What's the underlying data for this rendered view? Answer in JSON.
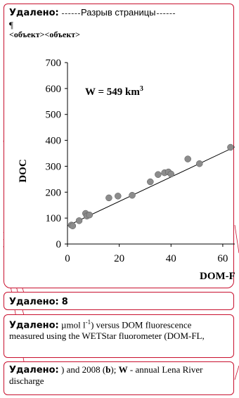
{
  "comments": {
    "main": {
      "label": "Удалено:",
      "break_text": "Разрыв страницы",
      "paragraph_mark": "¶",
      "objects": "<объект><объект>"
    },
    "second": {
      "label": "Удалено:",
      "text": "8"
    },
    "third": {
      "label": "Удалено:",
      "text_before": " µmol l",
      "sup": "-1",
      "text_after": ") versus DOM fluorescence measured using the WETStar fluorometer (DOM-FL,"
    },
    "fourth": {
      "label": "Удалено:",
      "text_before": " ) and 2008 (",
      "bold_b": "b",
      "text_mid": "); ",
      "bold_w": "W",
      "text_after": " - annual Lena River discharge"
    }
  },
  "chart_data": {
    "type": "scatter",
    "ylabel": "DOC",
    "xlabel": "DOM-F",
    "annotation_text": "W = 549 km",
    "annotation_sup": "3",
    "xlim": [
      0,
      66
    ],
    "ylim": [
      0,
      700
    ],
    "xticks": [
      0,
      20,
      40,
      60
    ],
    "yticks": [
      0,
      100,
      200,
      300,
      400,
      500,
      600,
      700
    ],
    "points": [
      {
        "x": 1.5,
        "y": 73
      },
      {
        "x": 2,
        "y": 70
      },
      {
        "x": 4.5,
        "y": 90
      },
      {
        "x": 7,
        "y": 118
      },
      {
        "x": 7.5,
        "y": 108
      },
      {
        "x": 8.5,
        "y": 112
      },
      {
        "x": 16,
        "y": 178
      },
      {
        "x": 19.5,
        "y": 185
      },
      {
        "x": 25,
        "y": 188
      },
      {
        "x": 32,
        "y": 240
      },
      {
        "x": 35,
        "y": 268
      },
      {
        "x": 37.5,
        "y": 275
      },
      {
        "x": 39,
        "y": 278
      },
      {
        "x": 40,
        "y": 270
      },
      {
        "x": 46.5,
        "y": 328
      },
      {
        "x": 51,
        "y": 310
      },
      {
        "x": 63,
        "y": 373
      }
    ],
    "fit": {
      "x0": 0,
      "y0": 70,
      "x1": 70,
      "y1": 400
    }
  }
}
